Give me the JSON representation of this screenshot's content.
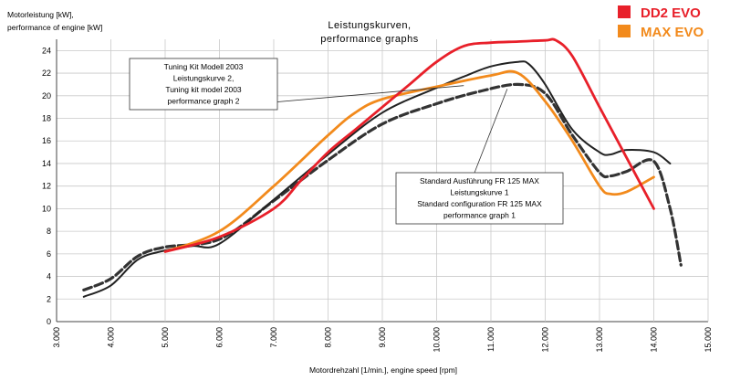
{
  "chart_data": {
    "type": "line",
    "title": "Leistungskurven,",
    "subtitle": "performance graphs",
    "ylabel_line1": "Motorleistung [kW],",
    "ylabel_line2": "performance of engine [kW]",
    "xlabel": "Motordrehzahl [1/min.],   engine speed [rpm]",
    "xlim": [
      3000,
      15000
    ],
    "ylim": [
      0,
      25
    ],
    "x_ticks": [
      3000,
      4000,
      5000,
      6000,
      7000,
      8000,
      9000,
      10000,
      11000,
      12000,
      13000,
      14000,
      15000
    ],
    "x_tick_labels": [
      "3.000",
      "4.000",
      "5.000",
      "6.000",
      "7.000",
      "8.000",
      "9.000",
      "10.000",
      "11.000",
      "12.000",
      "13.000",
      "14.000",
      "15.000"
    ],
    "y_ticks": [
      0,
      2,
      4,
      6,
      8,
      10,
      12,
      14,
      16,
      18,
      20,
      22,
      24
    ],
    "y_tick_labels": [
      "0",
      "2",
      "4",
      "6",
      "8",
      "10",
      "12",
      "14",
      "16",
      "18",
      "20",
      "22",
      "24"
    ],
    "grid": true,
    "legend_position": "top-right",
    "legend": [
      {
        "label": "DD2 EVO",
        "color": "#e8202a"
      },
      {
        "label": "MAX EVO",
        "color": "#f28a1c"
      }
    ],
    "annotations": [
      {
        "lines": [
          "Tuning Kit Modell 2003",
          "Leistungskurve 2,",
          "Tuning kit model 2003",
          "performance graph 2"
        ],
        "points_to": "solid-black"
      },
      {
        "lines": [
          "Standard Ausführung FR 125 MAX",
          "Leistungskurve 1",
          "Standard configuration FR 125 MAX",
          "performance graph 1"
        ],
        "points_to": "dashed-black"
      }
    ],
    "series": [
      {
        "name": "DD2 EVO",
        "color": "#e8202a",
        "style": "solid",
        "x": [
          5000,
          6000,
          7000,
          7500,
          8000,
          8500,
          9000,
          9500,
          10000,
          10500,
          11000,
          11500,
          12000,
          12200,
          12500,
          13000,
          13500,
          14000
        ],
        "y": [
          6.2,
          7.5,
          10,
          12.5,
          15,
          17,
          19,
          21,
          23,
          24.4,
          24.7,
          24.8,
          24.9,
          24.9,
          23.5,
          19,
          14.5,
          10
        ]
      },
      {
        "name": "MAX EVO",
        "color": "#f28a1c",
        "style": "solid",
        "x": [
          5000,
          6000,
          7000,
          8000,
          8500,
          9000,
          10000,
          11000,
          11500,
          12000,
          12500,
          13000,
          13200,
          13500,
          14000
        ],
        "y": [
          6.2,
          8.0,
          12,
          16.5,
          18.5,
          19.7,
          20.8,
          21.8,
          22,
          19.5,
          16,
          12,
          11.3,
          11.5,
          12.8
        ]
      },
      {
        "name": "Tuning Kit Modell 2003",
        "color": "#222222",
        "style": "solid",
        "x": [
          3500,
          4000,
          4500,
          5000,
          5500,
          6000,
          7000,
          8000,
          9000,
          10000,
          10500,
          11000,
          11500,
          11700,
          12000,
          12500,
          13000,
          13200,
          13500,
          14000,
          14300
        ],
        "y": [
          2.2,
          3.2,
          5.5,
          6.3,
          6.7,
          6.9,
          10.8,
          14.8,
          18.5,
          20.7,
          21.7,
          22.6,
          23.0,
          22.8,
          21,
          17,
          15,
          14.8,
          15.2,
          15,
          14
        ]
      },
      {
        "name": "Standard Ausführung FR 125 MAX",
        "color": "#333333",
        "style": "dashed",
        "x": [
          3500,
          4000,
          4500,
          5000,
          6000,
          7000,
          8000,
          9000,
          10000,
          10800,
          11500,
          12000,
          12500,
          13000,
          13200,
          13500,
          14000,
          14300,
          14500
        ],
        "y": [
          2.8,
          3.8,
          5.8,
          6.6,
          7.3,
          10.7,
          14.3,
          17.5,
          19.3,
          20.4,
          21.0,
          20.2,
          16.5,
          13.2,
          12.9,
          13.3,
          14.2,
          10,
          5
        ]
      }
    ]
  }
}
